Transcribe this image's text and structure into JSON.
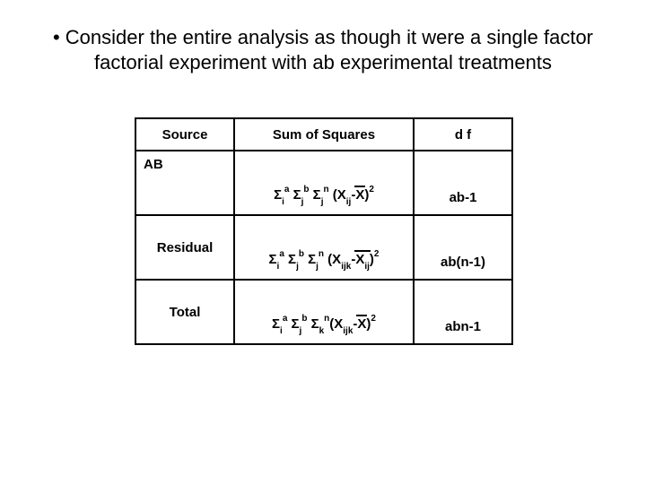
{
  "bullet": "• Consider the entire analysis as though it were a single factor factorial experiment with ab experimental treatments",
  "headers": {
    "source": "Source",
    "ss": "Sum of Squares",
    "df": "d f"
  },
  "rows": {
    "ab": {
      "source": "AB",
      "df": "ab-1"
    },
    "residual": {
      "source": "Residual",
      "df": "ab(n-1)"
    },
    "total": {
      "source": "Total",
      "df": "abn-1"
    }
  },
  "colors": {
    "background": "#ffffff",
    "text": "#000000",
    "border": "#000000"
  },
  "fonts": {
    "body_size": 22,
    "table_size": 15,
    "subsup_size": 10
  }
}
